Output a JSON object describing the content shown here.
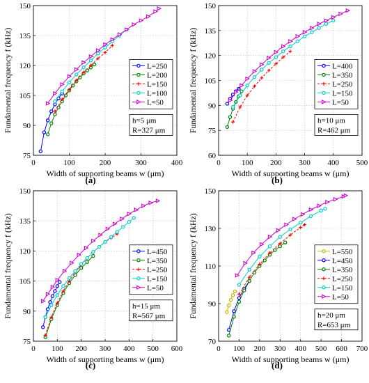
{
  "figure": {
    "panels_label": [
      "(a)",
      "(b)",
      "(c)",
      "(d)"
    ]
  },
  "chart_data": [
    {
      "type": "line",
      "panel": "(a)",
      "xlabel": "Width of supporting beams w (μm)",
      "ylabel": "Fundamental frequency f (kHz)",
      "xlim": [
        0,
        400
      ],
      "ylim": [
        75,
        150
      ],
      "xticks": [
        0,
        100,
        200,
        300,
        400
      ],
      "yticks": [
        75,
        90,
        105,
        120,
        135,
        150
      ],
      "grid": true,
      "legend_position": "right-middle",
      "annotation": [
        "h=5 μm",
        "R=327 μm"
      ],
      "series": [
        {
          "name": "L=250",
          "color": "#0000ff",
          "marker": "circle",
          "dashed": false,
          "x": [
            20,
            30,
            40,
            50,
            60,
            70,
            80
          ],
          "y": [
            77,
            86.5,
            92.5,
            97,
            100.5,
            103.5,
            106
          ]
        },
        {
          "name": "L=200",
          "color": "#008000",
          "marker": "circle",
          "dashed": false,
          "x": [
            40,
            50,
            60,
            70,
            80,
            90,
            100,
            110,
            120,
            130,
            140,
            150,
            160,
            170
          ],
          "y": [
            85.5,
            91,
            95.5,
            99,
            102,
            105,
            107.5,
            110,
            112,
            114,
            116,
            117.5,
            119,
            120.5
          ]
        },
        {
          "name": "L=150",
          "color": "#ff0000",
          "marker": "plus",
          "dashed": true,
          "x": [
            60,
            80,
            100,
            120,
            140,
            160,
            180,
            200,
            220
          ],
          "y": [
            97,
            103,
            108,
            112.5,
            116.5,
            120,
            123.5,
            126.5,
            130
          ]
        },
        {
          "name": "L=100",
          "color": "#00cccc",
          "marker": "circle",
          "dashed": false,
          "x": [
            60,
            80,
            100,
            120,
            140,
            160,
            180,
            200,
            220,
            240,
            260
          ],
          "y": [
            102,
            107,
            111.5,
            115.5,
            119,
            122.5,
            126,
            129,
            132,
            135,
            138
          ]
        },
        {
          "name": "L=50",
          "color": "#cc00cc",
          "marker": "triangle-right",
          "dashed": false,
          "x": [
            40,
            60,
            80,
            100,
            120,
            140,
            160,
            180,
            200,
            220,
            240,
            260,
            280,
            300,
            320,
            340,
            350
          ],
          "y": [
            101,
            106,
            110.5,
            114.5,
            118,
            121.5,
            124.5,
            127.5,
            130.5,
            133,
            135.5,
            138,
            140.5,
            142.5,
            144.5,
            147,
            148.5
          ]
        }
      ]
    },
    {
      "type": "line",
      "panel": "(b)",
      "xlabel": "Width of supporting beams w (μm)",
      "ylabel": "Fundamental frequency f (kHz)",
      "xlim": [
        0,
        500
      ],
      "ylim": [
        60,
        150
      ],
      "xticks": [
        0,
        100,
        200,
        300,
        400,
        500
      ],
      "yticks": [
        60,
        75,
        90,
        105,
        120,
        135,
        150
      ],
      "grid": true,
      "legend_position": "right-middle",
      "annotation": [
        "h=10 μm",
        "R=462 μm"
      ],
      "series": [
        {
          "name": "L=400",
          "color": "#0000ff",
          "marker": "circle",
          "dashed": false,
          "x": [
            30,
            40,
            50,
            60,
            70
          ],
          "y": [
            91,
            94,
            96.5,
            98.5,
            100
          ]
        },
        {
          "name": "L=350",
          "color": "#008000",
          "marker": "circle",
          "dashed": false,
          "x": [
            30,
            40,
            50,
            60,
            70,
            80
          ],
          "y": [
            77,
            83,
            88,
            92,
            95.5,
            98.5
          ]
        },
        {
          "name": "L=250",
          "color": "#ff0000",
          "marker": "plus",
          "dashed": true,
          "x": [
            50,
            75,
            100,
            125,
            150,
            175,
            200,
            225,
            250
          ],
          "y": [
            80,
            89,
            96,
            101.5,
            106.5,
            111,
            115,
            119,
            122.5
          ]
        },
        {
          "name": "L=150",
          "color": "#00cccc",
          "marker": "circle",
          "dashed": false,
          "x": [
            50,
            75,
            100,
            125,
            150,
            175,
            200,
            225,
            250,
            275,
            300,
            325,
            350,
            375,
            400
          ],
          "y": [
            89,
            96,
            102,
            107,
            111.5,
            115.5,
            119,
            122.5,
            125.5,
            128.5,
            131.5,
            134,
            136.5,
            139,
            141
          ]
        },
        {
          "name": "L=50",
          "color": "#cc00cc",
          "marker": "triangle-right",
          "dashed": false,
          "x": [
            40,
            60,
            80,
            100,
            125,
            150,
            175,
            200,
            225,
            250,
            275,
            300,
            325,
            350,
            375,
            400,
            425,
            450
          ],
          "y": [
            93,
            98,
            102,
            106,
            110.5,
            114.5,
            118.5,
            122,
            125.5,
            128.5,
            131.5,
            134,
            136.5,
            139,
            141,
            143,
            145,
            147
          ]
        }
      ]
    },
    {
      "type": "line",
      "panel": "(c)",
      "xlabel": "Width of supporting beams w (μm)",
      "ylabel": "Fundamental frequency f (kHz)",
      "xlim": [
        0,
        600
      ],
      "ylim": [
        75,
        150
      ],
      "xticks": [
        0,
        100,
        200,
        300,
        400,
        500,
        600
      ],
      "yticks": [
        75,
        90,
        105,
        120,
        135,
        150
      ],
      "grid": true,
      "legend_position": "right-middle",
      "annotation": [
        "h=15 μm",
        "R=567 μm"
      ],
      "series": [
        {
          "name": "L=450",
          "color": "#0000ff",
          "marker": "circle",
          "dashed": false,
          "x": [
            40,
            50,
            60,
            70,
            80,
            90,
            100,
            110
          ],
          "y": [
            82,
            87,
            91,
            94.5,
            97.5,
            100,
            102.5,
            104.5
          ]
        },
        {
          "name": "L=350",
          "color": "#008000",
          "marker": "circle",
          "dashed": false,
          "x": [
            50,
            75,
            100,
            125,
            150,
            175,
            200,
            225,
            250
          ],
          "y": [
            77,
            86,
            93,
            99,
            104,
            108,
            111.5,
            114.5,
            117.5
          ]
        },
        {
          "name": "L=250",
          "color": "#ff0000",
          "marker": "plus",
          "dashed": true,
          "x": [
            50,
            75,
            100,
            125,
            150,
            175,
            200,
            225,
            250,
            275,
            300,
            325,
            350
          ],
          "y": [
            78,
            87,
            94,
            100,
            105,
            109.5,
            113,
            116.5,
            119.5,
            122,
            124.5,
            126.5,
            128.5
          ]
        },
        {
          "name": "L=150",
          "color": "#00cccc",
          "marker": "circle",
          "dashed": false,
          "x": [
            50,
            75,
            100,
            125,
            150,
            175,
            200,
            225,
            250,
            275,
            300,
            325,
            350,
            375,
            400,
            420
          ],
          "y": [
            87,
            93,
            98,
            102.5,
            106.5,
            110,
            113.5,
            116.5,
            119.5,
            122,
            124.5,
            127,
            129.5,
            132,
            134.5,
            136.5
          ]
        },
        {
          "name": "L=50",
          "color": "#cc00cc",
          "marker": "triangle-right",
          "dashed": false,
          "x": [
            40,
            60,
            80,
            100,
            130,
            160,
            190,
            220,
            250,
            280,
            310,
            340,
            370,
            400,
            430,
            460,
            490,
            520
          ],
          "y": [
            95,
            98.5,
            102,
            105.5,
            110,
            114,
            118,
            121.5,
            125,
            128,
            131,
            133.5,
            136,
            138.5,
            140.5,
            142.5,
            144,
            145
          ]
        }
      ]
    },
    {
      "type": "line",
      "panel": "(d)",
      "xlabel": "Width of supporting beams w (μm)",
      "ylabel": "Fundamental frequency f (kHz)",
      "xlim": [
        0,
        700
      ],
      "ylim": [
        70,
        150
      ],
      "xticks": [
        0,
        100,
        200,
        300,
        400,
        500,
        600,
        700
      ],
      "yticks": [
        70,
        90,
        110,
        130,
        150
      ],
      "grid": true,
      "legend_position": "right-middle",
      "annotation": [
        "h=20 μm",
        "R=653 μm"
      ],
      "series": [
        {
          "name": "L=550",
          "color": "#c8b400",
          "marker": "circle",
          "dashed": false,
          "x": [
            40,
            50,
            60,
            70,
            80
          ],
          "y": [
            85.5,
            89,
            92,
            94.5,
            96.5
          ]
        },
        {
          "name": "L=450",
          "color": "#0000ff",
          "marker": "circle",
          "dashed": false,
          "x": [
            50,
            75,
            100,
            125,
            150
          ],
          "y": [
            76,
            86,
            93,
            98,
            102
          ]
        },
        {
          "name": "L=350",
          "color": "#008000",
          "marker": "circle",
          "dashed": false,
          "x": [
            50,
            75,
            100,
            125,
            150,
            175,
            200,
            225,
            250,
            275,
            300,
            325
          ],
          "y": [
            73,
            83,
            91,
            97,
            102,
            106.5,
            110,
            113,
            116,
            118.5,
            120.5,
            122.5
          ]
        },
        {
          "name": "L=250",
          "color": "#ff0000",
          "marker": "plus",
          "dashed": true,
          "x": [
            100,
            150,
            200,
            250,
            300,
            350,
            400,
            420
          ],
          "y": [
            95,
            104,
            111,
            117,
            122,
            126.5,
            130.5,
            132
          ]
        },
        {
          "name": "L=150",
          "color": "#00cccc",
          "marker": "circle",
          "dashed": false,
          "x": [
            100,
            150,
            200,
            250,
            300,
            350,
            400,
            450,
            500,
            520
          ],
          "y": [
            100,
            108,
            115,
            120.5,
            125.5,
            129.5,
            133,
            136.5,
            139.5,
            140.5
          ]
        },
        {
          "name": "L=50",
          "color": "#cc00cc",
          "marker": "triangle-right",
          "dashed": false,
          "x": [
            90,
            130,
            170,
            210,
            250,
            290,
            330,
            370,
            410,
            450,
            490,
            530,
            570,
            610,
            620
          ],
          "y": [
            105,
            111.5,
            117,
            121.5,
            125.5,
            129,
            132,
            135,
            137.5,
            140,
            142,
            144,
            145.5,
            147,
            147.5
          ]
        }
      ]
    }
  ]
}
